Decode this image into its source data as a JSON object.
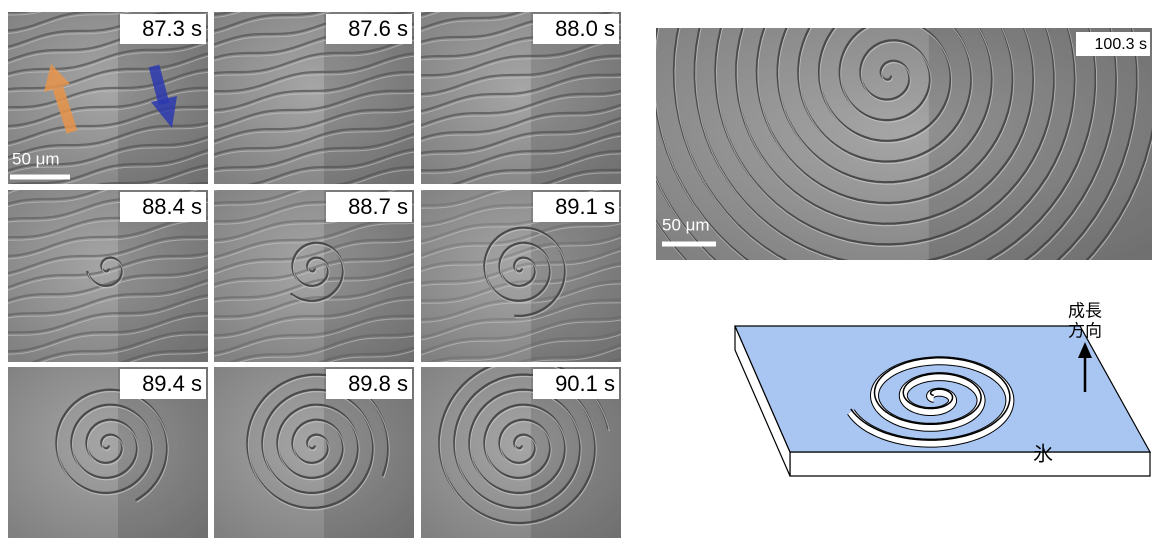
{
  "frames": [
    {
      "label": "87.3 s"
    },
    {
      "label": "87.6 s"
    },
    {
      "label": "88.0 s"
    },
    {
      "label": "88.4 s"
    },
    {
      "label": "88.7 s"
    },
    {
      "label": "89.1 s"
    },
    {
      "label": "89.4 s"
    },
    {
      "label": "89.8 s"
    },
    {
      "label": "90.1 s"
    }
  ],
  "frames_scale_bar": "50 μm",
  "large_image": {
    "label": "100.3 s",
    "scale_bar": "50 μm"
  },
  "diagram": {
    "direction_label": [
      "成長",
      "方向"
    ],
    "ice_label": "氷"
  }
}
